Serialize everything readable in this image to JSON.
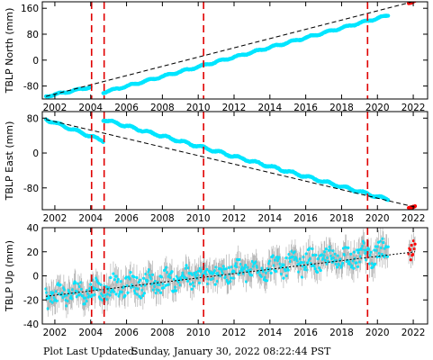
{
  "footer": {
    "prefix": "Plot Last Updated:",
    "timestamp": "Sunday, January 30, 2022 08:22:44 PST"
  },
  "colors": {
    "data": "#00e5ff",
    "error_bar": "#a8a8a8",
    "model": "#000000",
    "event_line": "#e00000",
    "recent": "#ff0000"
  },
  "chart_data": [
    {
      "type": "scatter",
      "ylabel": "TBLP North (mm)",
      "xlim": [
        2001.3,
        2022.8
      ],
      "ylim": [
        -120,
        180
      ],
      "x_ticks": [
        2002,
        2004,
        2006,
        2008,
        2010,
        2012,
        2014,
        2016,
        2018,
        2020,
        2022
      ],
      "y_ticks": [
        -80,
        0,
        80,
        160
      ],
      "event_lines": [
        2004.05,
        2004.75,
        2010.3,
        2019.45
      ],
      "series": [
        {
          "x": [
            2001.5,
            2004.0
          ],
          "y": [
            -112,
            -83
          ]
        },
        {
          "x": [
            2004.7,
            2020.6
          ],
          "y": [
            -100,
            138
          ]
        },
        {
          "x": [
            2021.75,
            2022.1
          ],
          "y": [
            178,
            182
          ]
        }
      ],
      "model": {
        "x": [
          2001.5,
          2022.1
        ],
        "y": [
          -112,
          182
        ]
      },
      "grid": false
    },
    {
      "type": "scatter",
      "ylabel": "TBLP East (mm)",
      "xlim": [
        2001.3,
        2022.8
      ],
      "ylim": [
        -130,
        95
      ],
      "x_ticks": [
        2002,
        2004,
        2006,
        2008,
        2010,
        2012,
        2014,
        2016,
        2018,
        2020,
        2022
      ],
      "y_ticks": [
        -80,
        0,
        80
      ],
      "event_lines": [
        2004.05,
        2004.75,
        2010.3,
        2019.45
      ],
      "series": [
        {
          "x": [
            2001.5,
            2004.7
          ],
          "y": [
            77,
            28
          ]
        },
        {
          "x": [
            2004.7,
            2020.6
          ],
          "y": [
            77,
            -107
          ]
        },
        {
          "x": [
            2021.75,
            2022.1
          ],
          "y": [
            -123,
            -124
          ]
        }
      ],
      "model": {
        "x": [
          2001.5,
          2022.1
        ],
        "y": [
          77,
          -124
        ]
      },
      "grid": false
    },
    {
      "type": "scatter",
      "ylabel": "TBLP Up (mm)",
      "xlim": [
        2001.3,
        2022.8
      ],
      "ylim": [
        -40,
        40
      ],
      "x_ticks": [
        2002,
        2004,
        2006,
        2008,
        2010,
        2012,
        2014,
        2016,
        2018,
        2020,
        2022
      ],
      "y_ticks": [
        -40,
        -20,
        0,
        20,
        40
      ],
      "event_lines": [
        2004.05,
        2004.75,
        2010.3,
        2019.45
      ],
      "series": [
        {
          "x": [
            2001.5,
            2020.6
          ],
          "y": [
            -17,
            20
          ]
        },
        {
          "x": [
            2021.75,
            2022.1
          ],
          "y": [
            19,
            21
          ]
        }
      ],
      "model": {
        "x": [
          2001.5,
          2022.1
        ],
        "y": [
          -17,
          20
        ]
      },
      "grid": false
    }
  ]
}
